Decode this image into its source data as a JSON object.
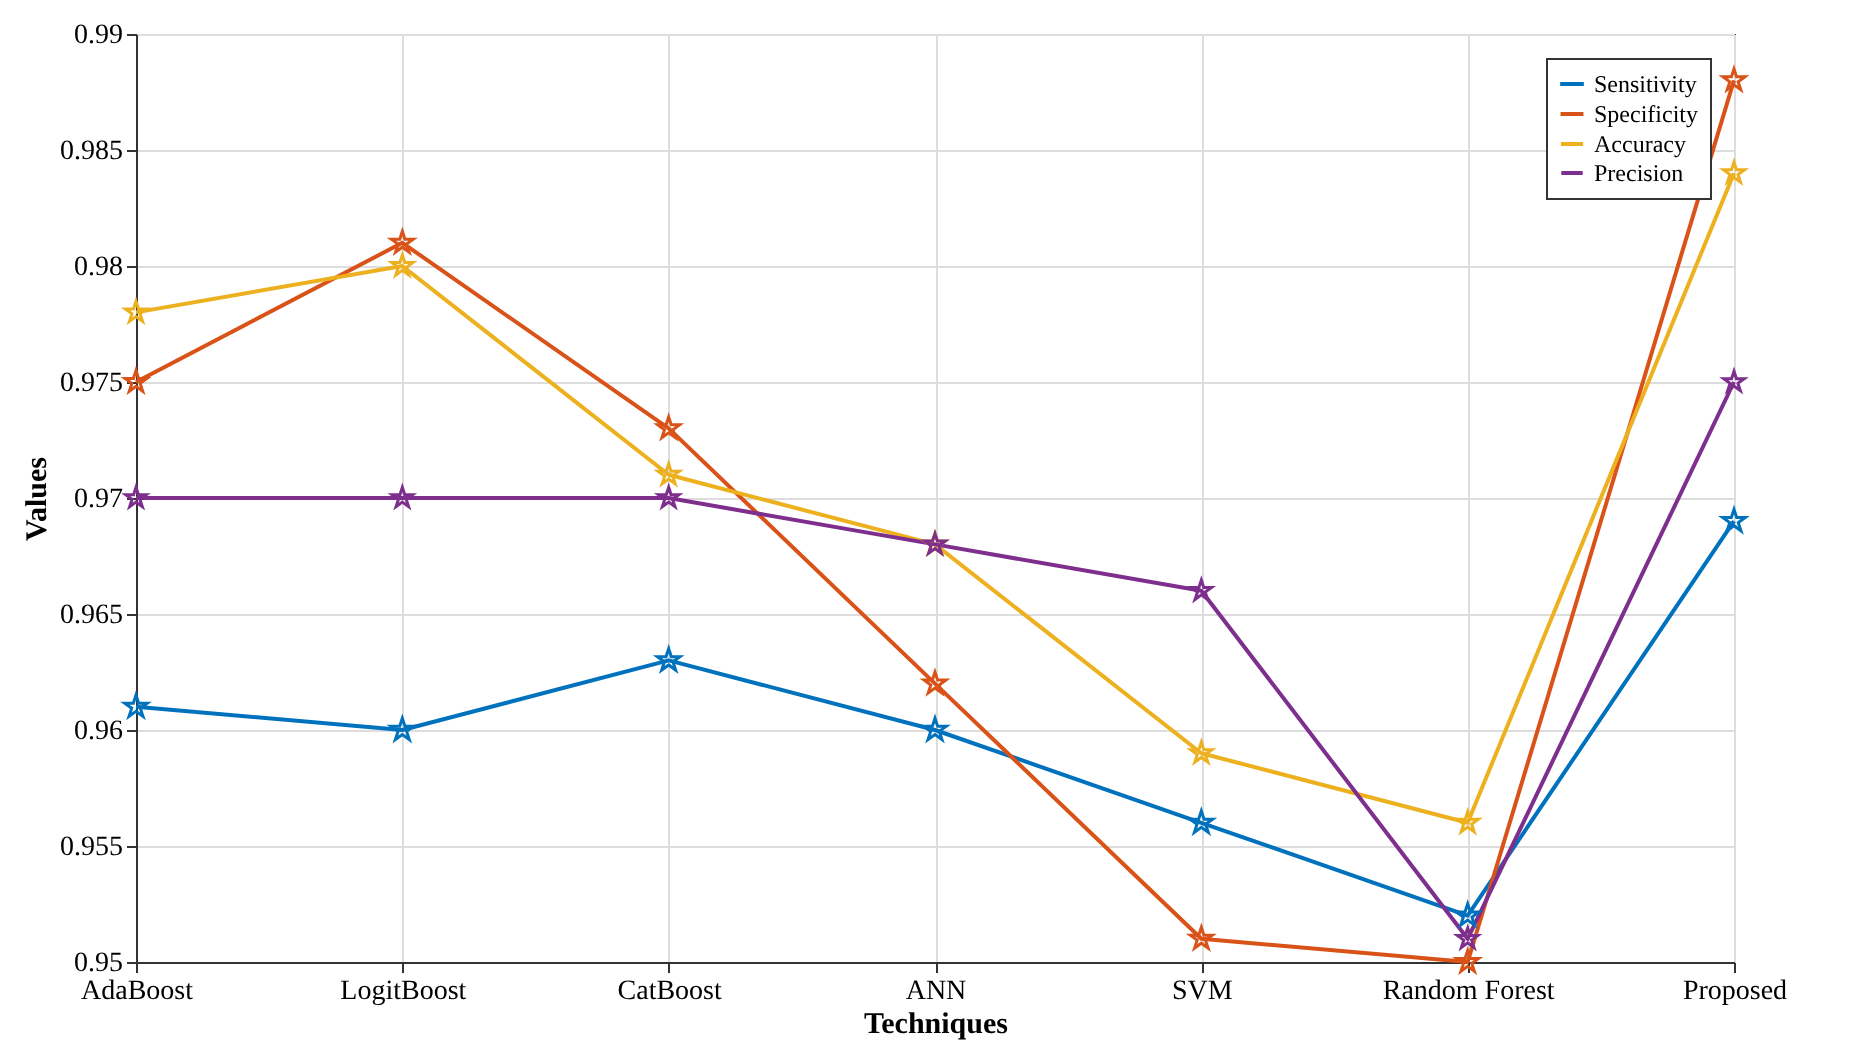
{
  "chart_data": {
    "type": "line",
    "xlabel": "Techniques",
    "ylabel": "Values",
    "categories": [
      "AdaBoost",
      "LogitBoost",
      "CatBoost",
      "ANN",
      "SVM",
      "Random Forest",
      "Proposed"
    ],
    "series": [
      {
        "name": "Sensitivity",
        "color": "#0072bd",
        "values": [
          0.961,
          0.96,
          0.963,
          0.96,
          0.956,
          0.952,
          0.969
        ]
      },
      {
        "name": "Specificity",
        "color": "#d95319",
        "values": [
          0.975,
          0.981,
          0.973,
          0.962,
          0.951,
          0.95,
          0.988
        ]
      },
      {
        "name": "Accuracy",
        "color": "#edb120",
        "values": [
          0.978,
          0.98,
          0.971,
          0.968,
          0.959,
          0.956,
          0.984
        ]
      },
      {
        "name": "Precision",
        "color": "#7e2f8e",
        "values": [
          0.97,
          0.97,
          0.97,
          0.968,
          0.966,
          0.951,
          0.975
        ]
      }
    ],
    "ylim": [
      0.95,
      0.99
    ],
    "yticks": [
      0.95,
      0.955,
      0.96,
      0.965,
      0.97,
      0.975,
      0.98,
      0.985,
      0.99
    ],
    "grid": true,
    "legend": "top right",
    "marker": "star",
    "line_style": "solid"
  }
}
